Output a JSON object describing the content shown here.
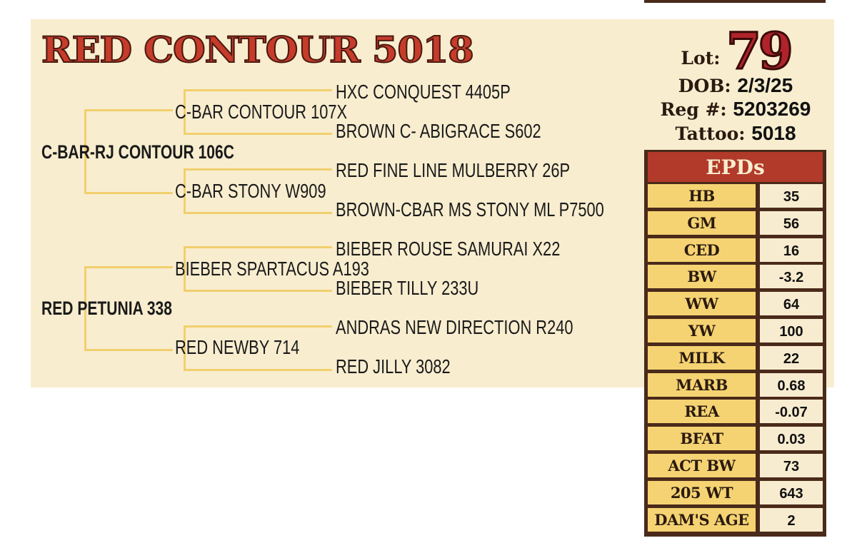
{
  "animal": {
    "name": "RED CONTOUR 5018",
    "lot_label": "Lot:",
    "lot": "79",
    "dob_label": "DOB:",
    "dob": "2/3/25",
    "reg_label": "Reg #:",
    "reg": "5203269",
    "tattoo_label": "Tattoo:",
    "tattoo": "5018"
  },
  "pedigree": {
    "sire": "C-BAR-RJ CONTOUR 106C",
    "sire_sire": "C-BAR CONTOUR 107X",
    "sire_dam": "C-BAR STONY W909",
    "sire_sire_sire": "HXC CONQUEST 4405P",
    "sire_sire_dam": "BROWN C- ABIGRACE S602",
    "sire_dam_sire": "RED FINE LINE MULBERRY 26P",
    "sire_dam_dam": "BROWN-CBAR MS STONY ML P7500",
    "dam": "RED PETUNIA 338",
    "dam_sire": "BIEBER SPARTACUS A193",
    "dam_dam": "RED NEWBY 714",
    "dam_sire_sire": "BIEBER ROUSE SAMURAI X22",
    "dam_sire_dam": "BIEBER TILLY 233U",
    "dam_dam_sire": "ANDRAS NEW DIRECTION R240",
    "dam_dam_dam": "RED JILLY 3082"
  },
  "epds": {
    "title": "EPDs",
    "rows": [
      {
        "label": "HB",
        "value": "35"
      },
      {
        "label": "GM",
        "value": "56"
      },
      {
        "label": "CED",
        "value": "16"
      },
      {
        "label": "BW",
        "value": "-3.2"
      },
      {
        "label": "WW",
        "value": "64"
      },
      {
        "label": "YW",
        "value": "100"
      },
      {
        "label": "MILK",
        "value": "22"
      },
      {
        "label": "MARB",
        "value": "0.68"
      },
      {
        "label": "REA",
        "value": "-0.07"
      },
      {
        "label": "BFAT",
        "value": "0.03"
      },
      {
        "label": "ACT BW",
        "value": "73"
      },
      {
        "label": "205 WT",
        "value": "643"
      },
      {
        "label": "DAM'S AGE",
        "value": "2"
      }
    ]
  },
  "colors": {
    "background": "#f8edcf",
    "title_red": "#c63b2a",
    "lines": "#f2cf6e",
    "epd_header": "#b23a2a",
    "epd_label": "#f5d372",
    "border": "#4a2a1a"
  }
}
